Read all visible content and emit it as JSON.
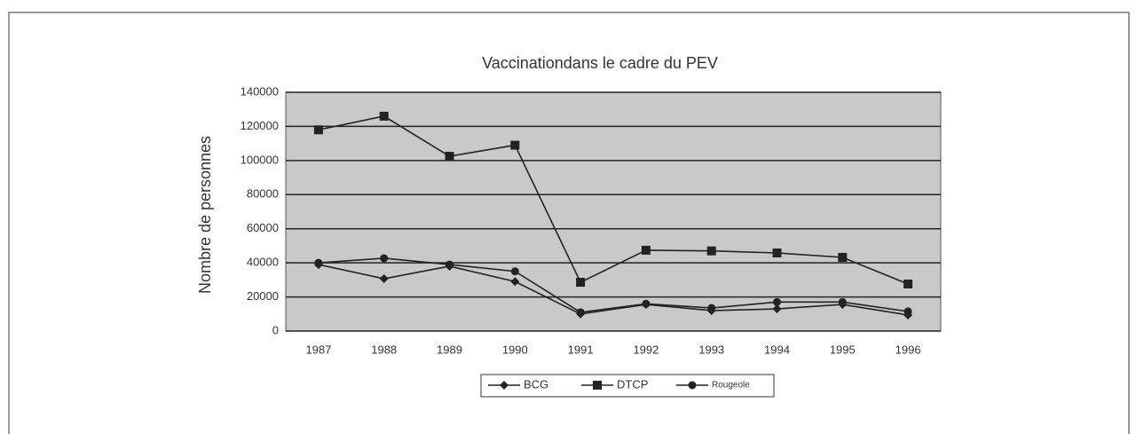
{
  "chart_data": {
    "type": "line",
    "title": "Vaccinationdans le cadre du PEV",
    "y_label": "Nombre de personnes",
    "categories": [
      "1987",
      "1988",
      "1989",
      "1990",
      "1991",
      "1992",
      "1993",
      "1994",
      "1995",
      "1996"
    ],
    "series": [
      {
        "name": "BCG",
        "color": "#222222",
        "marker": "diamond",
        "values": [
          39000,
          30700,
          38000,
          29000,
          10000,
          15600,
          12000,
          13000,
          15600,
          9400
        ]
      },
      {
        "name": "DTCP",
        "color": "#222222",
        "marker": "square",
        "values": [
          118000,
          126000,
          102500,
          109000,
          28600,
          47400,
          47000,
          45800,
          43200,
          27600
        ]
      },
      {
        "name": "Rougeole",
        "color": "#222222",
        "marker": "circle",
        "values": [
          40000,
          42700,
          39000,
          35000,
          11000,
          16000,
          13500,
          17000,
          17000,
          11500
        ]
      }
    ],
    "ylim": [
      0,
      140000
    ],
    "yticks": [
      0,
      20000,
      40000,
      60000,
      80000,
      100000,
      120000,
      140000
    ],
    "grid": true,
    "legend": "bottom"
  }
}
